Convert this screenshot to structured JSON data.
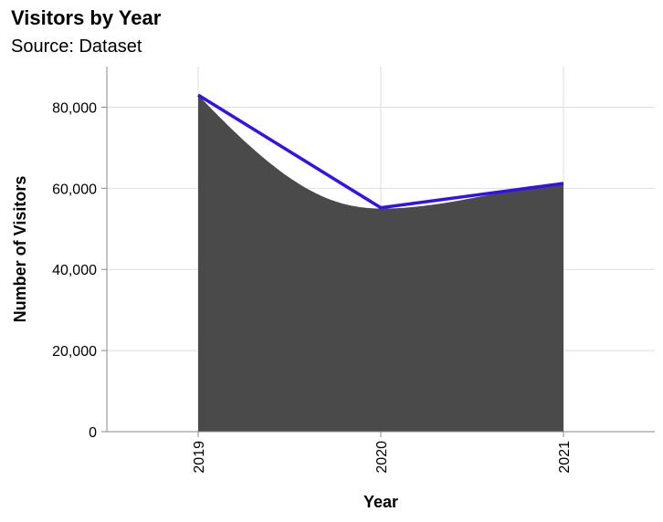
{
  "chart_data": {
    "type": "area",
    "title": "Visitors by Year",
    "subtitle": "Source: Dataset",
    "xlabel": "Year",
    "ylabel": "Number of Visitors",
    "categories": [
      "2019",
      "2020",
      "2021"
    ],
    "x_ticks": [
      "2019",
      "2020",
      "2021"
    ],
    "y_ticks": [
      0,
      20000,
      40000,
      60000,
      80000
    ],
    "y_tick_labels": [
      "0",
      "20,000",
      "40,000",
      "60,000",
      "80,000"
    ],
    "ylim": [
      0,
      90000
    ],
    "grid": true,
    "series": [
      {
        "kind": "area",
        "values": [
          83000,
          55000,
          61000
        ],
        "color": "#4a4a4a",
        "interpolation": "monotone"
      },
      {
        "kind": "line",
        "values": [
          83000,
          55200,
          61200
        ],
        "color": "#3311ee",
        "interpolation": "linear"
      }
    ]
  }
}
